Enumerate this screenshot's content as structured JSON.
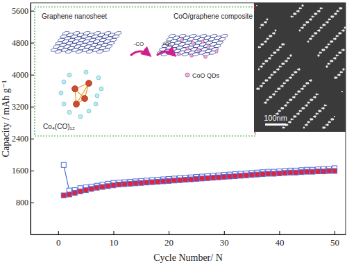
{
  "chart_data": {
    "type": "line",
    "x_label": "Cycle Number/ N",
    "y_label": "Capacity / mAh g⁻¹",
    "x": [
      1,
      2,
      3,
      4,
      5,
      6,
      7,
      8,
      9,
      10,
      11,
      12,
      13,
      14,
      15,
      16,
      17,
      18,
      19,
      20,
      21,
      22,
      23,
      24,
      25,
      26,
      27,
      28,
      29,
      30,
      31,
      32,
      33,
      34,
      35,
      36,
      37,
      38,
      39,
      40,
      41,
      42,
      43,
      44,
      45,
      46,
      47,
      48,
      49,
      50
    ],
    "series": [
      {
        "color": "#4a6cd4",
        "marker": "square-open",
        "line_style": "solid",
        "values": [
          1740,
          1100,
          1110,
          1160,
          1180,
          1200,
          1220,
          1250,
          1270,
          1290,
          1300,
          1310,
          1320,
          1330,
          1340,
          1350,
          1360,
          1370,
          1380,
          1390,
          1400,
          1410,
          1420,
          1430,
          1440,
          1450,
          1460,
          1470,
          1480,
          1490,
          1500,
          1510,
          1520,
          1530,
          1540,
          1550,
          1560,
          1570,
          1570,
          1580,
          1590,
          1600,
          1600,
          1610,
          1620,
          1620,
          1630,
          1640,
          1640,
          1660
        ]
      },
      {
        "color": "#e3213b",
        "marker": "square",
        "line_style": "solid",
        "values": [
          980,
          1000,
          1040,
          1080,
          1110,
          1140,
          1170,
          1190,
          1210,
          1230,
          1250,
          1260,
          1270,
          1280,
          1290,
          1300,
          1310,
          1320,
          1330,
          1340,
          1350,
          1360,
          1370,
          1380,
          1390,
          1400,
          1410,
          1420,
          1430,
          1440,
          1450,
          1460,
          1470,
          1480,
          1490,
          1500,
          1510,
          1520,
          1520,
          1530,
          1540,
          1550,
          1550,
          1560,
          1570,
          1570,
          1580,
          1580,
          1590,
          1590
        ]
      }
    ],
    "xlim": [
      -5,
      52
    ],
    "xticks": [
      0,
      10,
      20,
      30,
      40,
      50
    ],
    "ylim": [
      0,
      5800
    ],
    "yticks": [
      800,
      1600,
      2400,
      3200,
      4000,
      4800,
      5600
    ],
    "grid": false,
    "annotations": [
      "Graphene nanosheet",
      "CoO/graphene composite",
      "-CO",
      "+O₂",
      "Co₄(CO)₁₂",
      "CoO QDs",
      "100nm"
    ]
  }
}
